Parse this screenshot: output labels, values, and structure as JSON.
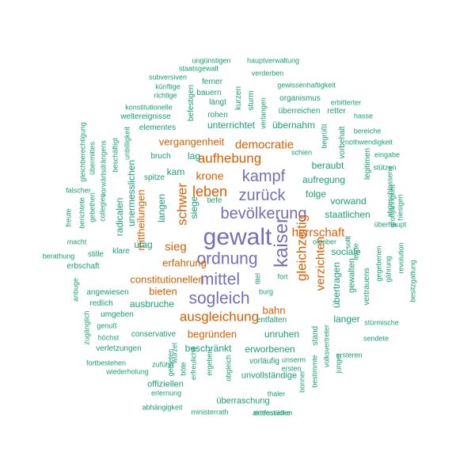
{
  "colors": {
    "tier1": "#7570b3",
    "tier2": "#d95f02",
    "tier3": "#1b9e77"
  },
  "words": [
    {
      "text": "gewalt",
      "tier": 1,
      "weight": 10
    },
    {
      "text": "kaiser",
      "tier": 1,
      "weight": 8
    },
    {
      "text": "ordnung",
      "tier": 1,
      "weight": 7
    },
    {
      "text": "mittel",
      "tier": 1,
      "weight": 7
    },
    {
      "text": "sogleich",
      "tier": 1,
      "weight": 7
    },
    {
      "text": "kampf",
      "tier": 1,
      "weight": 7
    },
    {
      "text": "bevölkerung",
      "tier": 1,
      "weight": 7
    },
    {
      "text": "zurück",
      "tier": 1,
      "weight": 7
    },
    {
      "text": "aufhebung",
      "tier": 2,
      "weight": 6
    },
    {
      "text": "leben",
      "tier": 2,
      "weight": 6
    },
    {
      "text": "schwer",
      "tier": 2,
      "weight": 6
    },
    {
      "text": "gleichzeitig",
      "tier": 2,
      "weight": 6
    },
    {
      "text": "ausgleichung",
      "tier": 2,
      "weight": 6
    },
    {
      "text": "verzichten",
      "tier": 2,
      "weight": 5
    },
    {
      "text": "herrschaft",
      "tier": 2,
      "weight": 5
    },
    {
      "text": "democratie",
      "tier": 2,
      "weight": 5
    },
    {
      "text": "sieg",
      "tier": 2,
      "weight": 5
    },
    {
      "text": "krone",
      "tier": 2,
      "weight": 4
    },
    {
      "text": "vergangenheit",
      "tier": 2,
      "weight": 4
    },
    {
      "text": "mittheilungen",
      "tier": 2,
      "weight": 4
    },
    {
      "text": "erfahrung",
      "tier": 2,
      "weight": 4
    },
    {
      "text": "constitutionellen",
      "tier": 2,
      "weight": 4
    },
    {
      "text": "bieten",
      "tier": 2,
      "weight": 4
    },
    {
      "text": "begründen",
      "tier": 2,
      "weight": 4
    },
    {
      "text": "bahn",
      "tier": 2,
      "weight": 4
    },
    {
      "text": "unterrichtet",
      "tier": 3,
      "weight": 3
    },
    {
      "text": "übernahm",
      "tier": 3,
      "weight": 3
    },
    {
      "text": "beraubt",
      "tier": 3,
      "weight": 3
    },
    {
      "text": "aufregung",
      "tier": 3,
      "weight": 3
    },
    {
      "text": "folge",
      "tier": 3,
      "weight": 3
    },
    {
      "text": "vorwand",
      "tier": 3,
      "weight": 3
    },
    {
      "text": "staatlichen",
      "tier": 3,
      "weight": 3
    },
    {
      "text": "sociale",
      "tier": 3,
      "weight": 3
    },
    {
      "text": "übertragen",
      "tier": 3,
      "weight": 3
    },
    {
      "text": "gewalten",
      "tier": 3,
      "weight": 3
    },
    {
      "text": "lag",
      "tier": 3,
      "weight": 3
    },
    {
      "text": "kam",
      "tier": 3,
      "weight": 3
    },
    {
      "text": "langen",
      "tier": 3,
      "weight": 3
    },
    {
      "text": "siege",
      "tier": 3,
      "weight": 3
    },
    {
      "text": "radicalen",
      "tier": 3,
      "weight": 3
    },
    {
      "text": "utag",
      "tier": 3,
      "weight": 3
    },
    {
      "text": "ausbruche",
      "tier": 3,
      "weight": 3
    },
    {
      "text": "beschränkt",
      "tier": 3,
      "weight": 3
    },
    {
      "text": "erworbenen",
      "tier": 3,
      "weight": 3
    },
    {
      "text": "unruhen",
      "tier": 3,
      "weight": 3
    },
    {
      "text": "langer",
      "tier": 3,
      "weight": 3
    },
    {
      "text": "conservative",
      "tier": 3,
      "weight": 2
    },
    {
      "text": "verletzungen",
      "tier": 3,
      "weight": 2
    },
    {
      "text": "offiziellen",
      "tier": 3,
      "weight": 2
    },
    {
      "text": "überraschung",
      "tier": 3,
      "weight": 2
    },
    {
      "text": "unvollständige",
      "tier": 3,
      "weight": 2
    },
    {
      "text": "vorläufig",
      "tier": 3,
      "weight": 2
    },
    {
      "text": "entfalten",
      "tier": 3,
      "weight": 2
    },
    {
      "text": "angewiesen",
      "tier": 3,
      "weight": 2
    },
    {
      "text": "redlich",
      "tier": 3,
      "weight": 2
    },
    {
      "text": "umgeben",
      "tier": 3,
      "weight": 2
    },
    {
      "text": "klare",
      "tier": 3,
      "weight": 2
    },
    {
      "text": "stille",
      "tier": 3,
      "weight": 2
    },
    {
      "text": "erbschaft",
      "tier": 3,
      "weight": 2
    },
    {
      "text": "elementes",
      "tier": 3,
      "weight": 2
    },
    {
      "text": "weltereignisse",
      "tier": 3,
      "weight": 2
    },
    {
      "text": "rohen",
      "tier": 3,
      "weight": 2
    },
    {
      "text": "längt",
      "tier": 3,
      "weight": 2
    },
    {
      "text": "organismus",
      "tier": 3,
      "weight": 2
    },
    {
      "text": "überreichen",
      "tier": 3,
      "weight": 2
    },
    {
      "text": "retter",
      "tier": 3,
      "weight": 2
    },
    {
      "text": "schien",
      "tier": 3,
      "weight": 2
    },
    {
      "text": "tiefe",
      "tier": 3,
      "weight": 2
    },
    {
      "text": "spitze",
      "tier": 3,
      "weight": 2
    },
    {
      "text": "bruch",
      "tier": 3,
      "weight": 2
    },
    {
      "text": "fort",
      "tier": 3,
      "weight": 2
    },
    {
      "text": "titel",
      "tier": 3,
      "weight": 2
    },
    {
      "text": "burg",
      "tier": 3,
      "weight": 2
    },
    {
      "text": "vertrauens",
      "tier": 3,
      "weight": 2
    },
    {
      "text": "stand",
      "tier": 3,
      "weight": 2
    },
    {
      "text": "legitimen",
      "tier": 3,
      "weight": 2
    },
    {
      "text": "vorbehalt",
      "tier": 3,
      "weight": 2
    },
    {
      "text": "befestigen",
      "tier": 3,
      "weight": 2
    },
    {
      "text": "kurzen",
      "tier": 3,
      "weight": 2
    },
    {
      "text": "sturm",
      "tier": 3,
      "weight": 2
    },
    {
      "text": "bauern",
      "tier": 3,
      "weight": 2
    },
    {
      "text": "ferner",
      "tier": 3,
      "weight": 2
    },
    {
      "text": "gewissenhaftigkeit",
      "tier": 3,
      "weight": 1
    },
    {
      "text": "verderben",
      "tier": 3,
      "weight": 1
    },
    {
      "text": "staatsgewalt",
      "tier": 3,
      "weight": 1
    },
    {
      "text": "ungünstigen",
      "tier": 3,
      "weight": 1
    },
    {
      "text": "hauptverwaltung",
      "tier": 3,
      "weight": 1
    },
    {
      "text": "subversiven",
      "tier": 3,
      "weight": 1
    },
    {
      "text": "künftige",
      "tier": 3,
      "weight": 1
    },
    {
      "text": "richtige",
      "tier": 3,
      "weight": 1
    },
    {
      "text": "konstitutionelle",
      "tier": 3,
      "weight": 1
    },
    {
      "text": "erbitterter",
      "tier": 3,
      "weight": 1
    },
    {
      "text": "hasse",
      "tier": 3,
      "weight": 1
    },
    {
      "text": "bereiche",
      "tier": 3,
      "weight": 1
    },
    {
      "text": "nothwendigkeit",
      "tier": 3,
      "weight": 1
    },
    {
      "text": "eingabe",
      "tier": 3,
      "weight": 1
    },
    {
      "text": "stützen",
      "tier": 3,
      "weight": 1
    },
    {
      "text": "abgeschlossene",
      "tier": 3,
      "weight": 1
    },
    {
      "text": "großjährigkeit",
      "tier": 3,
      "weight": 1
    },
    {
      "text": "hiesigen",
      "tier": 3,
      "weight": 1
    },
    {
      "text": "überhaupt",
      "tier": 3,
      "weight": 1
    },
    {
      "text": "revolution",
      "tier": 3,
      "weight": 1
    },
    {
      "text": "besitzgattung",
      "tier": 3,
      "weight": 1
    },
    {
      "text": "gegebenen",
      "tier": 3,
      "weight": 1
    },
    {
      "text": "gährung",
      "tier": 3,
      "weight": 1
    },
    {
      "text": "letzte",
      "tier": 3,
      "weight": 1
    },
    {
      "text": "sollt",
      "tier": 3,
      "weight": 1
    },
    {
      "text": "oktober",
      "tier": 3,
      "weight": 1
    },
    {
      "text": "stürmische",
      "tier": 3,
      "weight": 1
    },
    {
      "text": "sendete",
      "tier": 3,
      "weight": 1
    },
    {
      "text": "ersteren",
      "tier": 3,
      "weight": 1
    },
    {
      "text": "junger",
      "tier": 3,
      "weight": 1
    },
    {
      "text": "bestimmte",
      "tier": 3,
      "weight": 1
    },
    {
      "text": "bonner",
      "tier": 3,
      "weight": 1
    },
    {
      "text": "volksvertreter",
      "tier": 3,
      "weight": 1
    },
    {
      "text": "unserm",
      "tier": 3,
      "weight": 1
    },
    {
      "text": "ersten",
      "tier": 3,
      "weight": 1
    },
    {
      "text": "thaler",
      "tier": 3,
      "weight": 1
    },
    {
      "text": "aktenstücke",
      "tier": 3,
      "weight": 1
    },
    {
      "text": "entfesselten",
      "tier": 3,
      "weight": 1
    },
    {
      "text": "ministerrath",
      "tier": 3,
      "weight": 1
    },
    {
      "text": "abhängigkeit",
      "tier": 3,
      "weight": 1
    },
    {
      "text": "erlernung",
      "tier": 3,
      "weight": 1
    },
    {
      "text": "gebieten",
      "tier": 3,
      "weight": 1
    },
    {
      "text": "böte",
      "tier": 3,
      "weight": 1
    },
    {
      "text": "wurzel",
      "tier": 3,
      "weight": 1
    },
    {
      "text": "erfreuliche",
      "tier": 3,
      "weight": 1
    },
    {
      "text": "ergeben",
      "tier": 3,
      "weight": 1
    },
    {
      "text": "obgleich",
      "tier": 3,
      "weight": 1
    },
    {
      "text": "wiederholung",
      "tier": 3,
      "weight": 1
    },
    {
      "text": "zuführt",
      "tier": 3,
      "weight": 1
    },
    {
      "text": "fortbestehen",
      "tier": 3,
      "weight": 1
    },
    {
      "text": "höchst",
      "tier": 3,
      "weight": 1
    },
    {
      "text": "genuß",
      "tier": 3,
      "weight": 1
    },
    {
      "text": "zugänglich",
      "tier": 3,
      "weight": 1
    },
    {
      "text": "anbuge",
      "tier": 3,
      "weight": 1
    },
    {
      "text": "berathung",
      "tier": 3,
      "weight": 1
    },
    {
      "text": "macht",
      "tier": 3,
      "weight": 1
    },
    {
      "text": "freute",
      "tier": 3,
      "weight": 1
    },
    {
      "text": "berichtete",
      "tier": 3,
      "weight": 1
    },
    {
      "text": "gebethen",
      "tier": 3,
      "weight": 1
    },
    {
      "text": "collegien",
      "tier": 3,
      "weight": 1
    },
    {
      "text": "falscher",
      "tier": 3,
      "weight": 1
    },
    {
      "text": "gleichberechtigung",
      "tier": 3,
      "weight": 1
    },
    {
      "text": "übermittes",
      "tier": 3,
      "weight": 1
    },
    {
      "text": "vorwärtsdrängens",
      "tier": 3,
      "weight": 1
    },
    {
      "text": "unbilligkeit",
      "tier": 3,
      "weight": 1
    },
    {
      "text": "beschäftigt",
      "tier": 3,
      "weight": 1
    },
    {
      "text": "unermesslichen",
      "tier": 3,
      "weight": 1
    },
    {
      "text": "begrüßt",
      "tier": 3,
      "weight": 1
    },
    {
      "text": "verlangen",
      "tier": 3,
      "weight": 1
    }
  ]
}
